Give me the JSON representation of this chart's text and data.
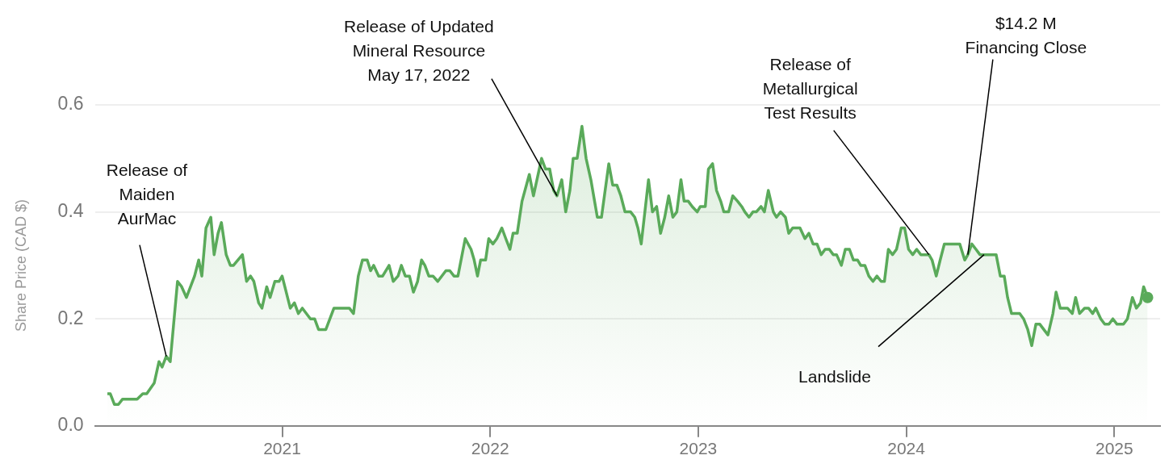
{
  "chart_data": {
    "type": "area",
    "ylabel": "Share Price (CAD $)",
    "x": [
      2020.16,
      2020.174,
      2020.194,
      2020.213,
      2020.233,
      2020.303,
      2020.33,
      2020.349,
      2020.385,
      2020.408,
      2020.423,
      2020.443,
      2020.462,
      2020.497,
      2020.517,
      2020.54,
      2020.579,
      2020.599,
      2020.614,
      2020.634,
      2020.657,
      2020.673,
      2020.692,
      2020.708,
      2020.731,
      2020.751,
      2020.766,
      2020.809,
      2020.829,
      2020.848,
      2020.864,
      2020.887,
      2020.903,
      2020.926,
      2020.942,
      2020.965,
      2020.985,
      2021.0,
      2021.039,
      2021.059,
      2021.078,
      2021.097,
      2021.136,
      2021.156,
      2021.175,
      2021.21,
      2021.249,
      2021.323,
      2021.343,
      2021.366,
      2021.386,
      2021.409,
      2021.425,
      2021.44,
      2021.464,
      2021.483,
      2021.514,
      2021.534,
      2021.557,
      2021.573,
      2021.592,
      2021.612,
      2021.631,
      2021.651,
      2021.67,
      2021.686,
      2021.705,
      2021.725,
      2021.748,
      2021.787,
      2021.806,
      2021.826,
      2021.845,
      2021.88,
      2021.908,
      2021.923,
      2021.939,
      2021.954,
      2021.978,
      2021.993,
      2022.013,
      2022.032,
      2022.056,
      2022.075,
      2022.095,
      2022.11,
      2022.13,
      2022.153,
      2022.188,
      2022.208,
      2022.247,
      2022.266,
      2022.286,
      2022.305,
      2022.321,
      2022.344,
      2022.363,
      2022.383,
      2022.399,
      2022.418,
      2022.441,
      2022.461,
      2022.484,
      2022.515,
      2022.535,
      2022.57,
      2022.589,
      2022.609,
      2022.628,
      2022.648,
      2022.675,
      2022.695,
      2022.71,
      2022.726,
      2022.761,
      2022.78,
      2022.8,
      2022.819,
      2022.839,
      2022.858,
      2022.878,
      2022.897,
      2022.917,
      2022.932,
      2022.952,
      2022.971,
      2022.995,
      2023.01,
      2023.034,
      2023.049,
      2023.069,
      2023.088,
      2023.108,
      2023.123,
      2023.146,
      2023.166,
      2023.189,
      2023.209,
      2023.224,
      2023.244,
      2023.263,
      2023.279,
      2023.302,
      2023.318,
      2023.337,
      2023.361,
      2023.376,
      2023.396,
      2023.419,
      2023.435,
      2023.454,
      2023.489,
      2023.513,
      2023.532,
      2023.552,
      2023.571,
      2023.591,
      2023.61,
      2023.63,
      2023.649,
      2023.665,
      2023.688,
      2023.707,
      2023.727,
      2023.746,
      2023.766,
      2023.781,
      2023.801,
      2023.82,
      2023.84,
      2023.859,
      2023.879,
      2023.895,
      2023.914,
      2023.934,
      2023.953,
      2023.976,
      2023.992,
      2024.011,
      2024.031,
      2024.05,
      2024.07,
      2024.109,
      2024.124,
      2024.144,
      2024.163,
      2024.183,
      2024.257,
      2024.281,
      2024.296,
      2024.315,
      2024.335,
      2024.354,
      2024.374,
      2024.393,
      2024.432,
      2024.452,
      2024.471,
      2024.487,
      2024.506,
      2024.545,
      2024.564,
      2024.584,
      2024.603,
      2024.623,
      2024.642,
      2024.681,
      2024.705,
      2024.72,
      2024.74,
      2024.775,
      2024.798,
      2024.814,
      2024.833,
      2024.857,
      2024.876,
      2024.896,
      2024.911,
      2024.935,
      2024.954,
      2024.974,
      2024.993,
      2025.013,
      2025.044,
      2025.063,
      2025.087,
      2025.106,
      2025.126,
      2025.141,
      2025.16
    ],
    "series": [
      {
        "color": "#5aaa5a",
        "values": [
          0.06,
          0.06,
          0.04,
          0.04,
          0.05,
          0.05,
          0.06,
          0.06,
          0.08,
          0.12,
          0.11,
          0.13,
          0.12,
          0.27,
          0.26,
          0.24,
          0.28,
          0.31,
          0.28,
          0.37,
          0.39,
          0.32,
          0.36,
          0.38,
          0.32,
          0.3,
          0.3,
          0.32,
          0.27,
          0.28,
          0.27,
          0.23,
          0.22,
          0.26,
          0.24,
          0.27,
          0.27,
          0.28,
          0.22,
          0.23,
          0.21,
          0.22,
          0.2,
          0.2,
          0.18,
          0.18,
          0.22,
          0.22,
          0.21,
          0.28,
          0.31,
          0.31,
          0.29,
          0.3,
          0.28,
          0.28,
          0.3,
          0.27,
          0.28,
          0.3,
          0.28,
          0.28,
          0.25,
          0.27,
          0.31,
          0.3,
          0.28,
          0.28,
          0.27,
          0.29,
          0.29,
          0.28,
          0.28,
          0.35,
          0.33,
          0.31,
          0.28,
          0.31,
          0.31,
          0.35,
          0.34,
          0.35,
          0.37,
          0.35,
          0.33,
          0.36,
          0.36,
          0.42,
          0.47,
          0.43,
          0.5,
          0.48,
          0.48,
          0.44,
          0.43,
          0.46,
          0.4,
          0.44,
          0.5,
          0.5,
          0.56,
          0.5,
          0.46,
          0.39,
          0.39,
          0.49,
          0.45,
          0.45,
          0.43,
          0.4,
          0.4,
          0.39,
          0.37,
          0.34,
          0.46,
          0.4,
          0.41,
          0.36,
          0.39,
          0.43,
          0.39,
          0.4,
          0.46,
          0.42,
          0.42,
          0.41,
          0.4,
          0.41,
          0.41,
          0.48,
          0.49,
          0.44,
          0.42,
          0.4,
          0.4,
          0.43,
          0.42,
          0.41,
          0.4,
          0.39,
          0.4,
          0.4,
          0.41,
          0.4,
          0.44,
          0.4,
          0.39,
          0.4,
          0.39,
          0.36,
          0.37,
          0.37,
          0.35,
          0.36,
          0.34,
          0.34,
          0.32,
          0.33,
          0.33,
          0.32,
          0.32,
          0.3,
          0.33,
          0.33,
          0.31,
          0.31,
          0.3,
          0.3,
          0.28,
          0.27,
          0.28,
          0.27,
          0.27,
          0.33,
          0.32,
          0.33,
          0.37,
          0.37,
          0.33,
          0.32,
          0.33,
          0.32,
          0.32,
          0.31,
          0.28,
          0.31,
          0.34,
          0.34,
          0.31,
          0.32,
          0.34,
          0.33,
          0.32,
          0.32,
          0.32,
          0.32,
          0.28,
          0.28,
          0.24,
          0.21,
          0.21,
          0.2,
          0.18,
          0.15,
          0.19,
          0.19,
          0.17,
          0.21,
          0.25,
          0.22,
          0.22,
          0.21,
          0.24,
          0.21,
          0.22,
          0.22,
          0.21,
          0.22,
          0.2,
          0.19,
          0.19,
          0.2,
          0.19,
          0.19,
          0.2,
          0.24,
          0.22,
          0.23,
          0.26,
          0.24
        ]
      }
    ],
    "xlim": [
      2020.1,
      2025.22
    ],
    "xticks": [
      2021,
      2022,
      2023,
      2024,
      2025
    ],
    "ylim": [
      0,
      0.6
    ],
    "yticks": [
      {
        "value": 0,
        "label": "0.0"
      },
      {
        "value": 0.2,
        "label": "0.2"
      },
      {
        "value": 0.4,
        "label": "0.4"
      },
      {
        "value": 0.6,
        "label": "0.6"
      }
    ],
    "grid": "y",
    "annotations": [
      {
        "text": "Release of\nMaiden\nAurMac",
        "x": 2020.443,
        "y": 0.13
      },
      {
        "text": "Release of Updated\nMineral Resource\nMay 17, 2022",
        "x": 2022.321,
        "y": 0.43
      },
      {
        "text": "Release of\nMetallurgical\nTest Results",
        "x": 2024.109,
        "y": 0.32
      },
      {
        "text": "$14.2 M\nFinancing Close",
        "x": 2024.296,
        "y": 0.32
      },
      {
        "text": "Landslide",
        "x": 2024.374,
        "y": 0.32
      }
    ]
  }
}
